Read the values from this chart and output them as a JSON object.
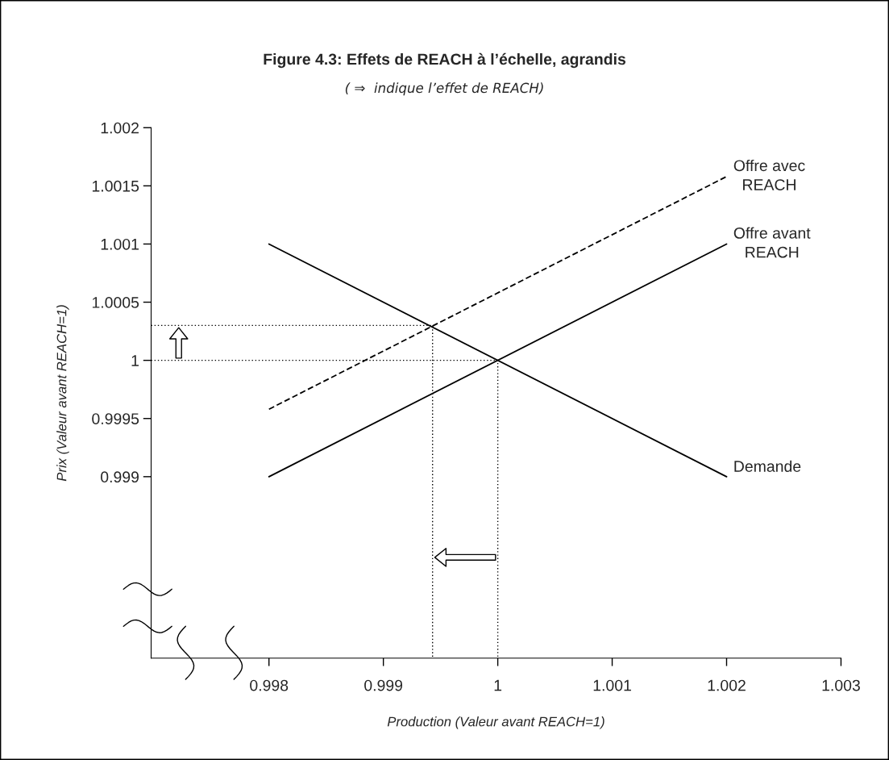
{
  "chart_data": {
    "type": "line",
    "title": "Figure 4.3: Effets de REACH à l’échelle, agrandis",
    "subtitle": "( ⇒  indique l’effet de REACH)",
    "xlabel": "Production (Valeur avant REACH=1)",
    "ylabel": "Prix (Valeur avant REACH=1)",
    "xlim": [
      0.99697,
      1.003
    ],
    "xticks": [
      0.998,
      0.999,
      1,
      1.001,
      1.002,
      1.003
    ],
    "ylim": [
      0.99744,
      1.002
    ],
    "yticks": [
      0.999,
      0.9995,
      1,
      1.0005,
      1.001,
      1.0015,
      1.002
    ],
    "grid": false,
    "legend": false,
    "series": [
      {
        "name": "Demande",
        "x": [
          0.998,
          1.002
        ],
        "values": [
          1.001,
          0.999
        ],
        "color": "#000000",
        "line_style": "solid"
      },
      {
        "name": "Offre avant\nREACH",
        "x": [
          0.998,
          1.002
        ],
        "values": [
          0.999,
          1.001
        ],
        "color": "#000000",
        "line_style": "solid"
      },
      {
        "name": "Offre avec\nREACH",
        "x": [
          0.998,
          1.002
        ],
        "values": [
          0.99958,
          1.00158
        ],
        "color": "#000000",
        "line_style": "dashed"
      },
      {
        "x": [
          0.99697,
          1,
          1
        ],
        "values": [
          1,
          1,
          0.99744
        ],
        "color": "#000000",
        "line_style": "dotted"
      },
      {
        "x": [
          0.99697,
          0.99943,
          0.99943
        ],
        "values": [
          1.0003,
          1.0003,
          0.99744
        ],
        "color": "#000000",
        "line_style": "dotted"
      }
    ]
  }
}
